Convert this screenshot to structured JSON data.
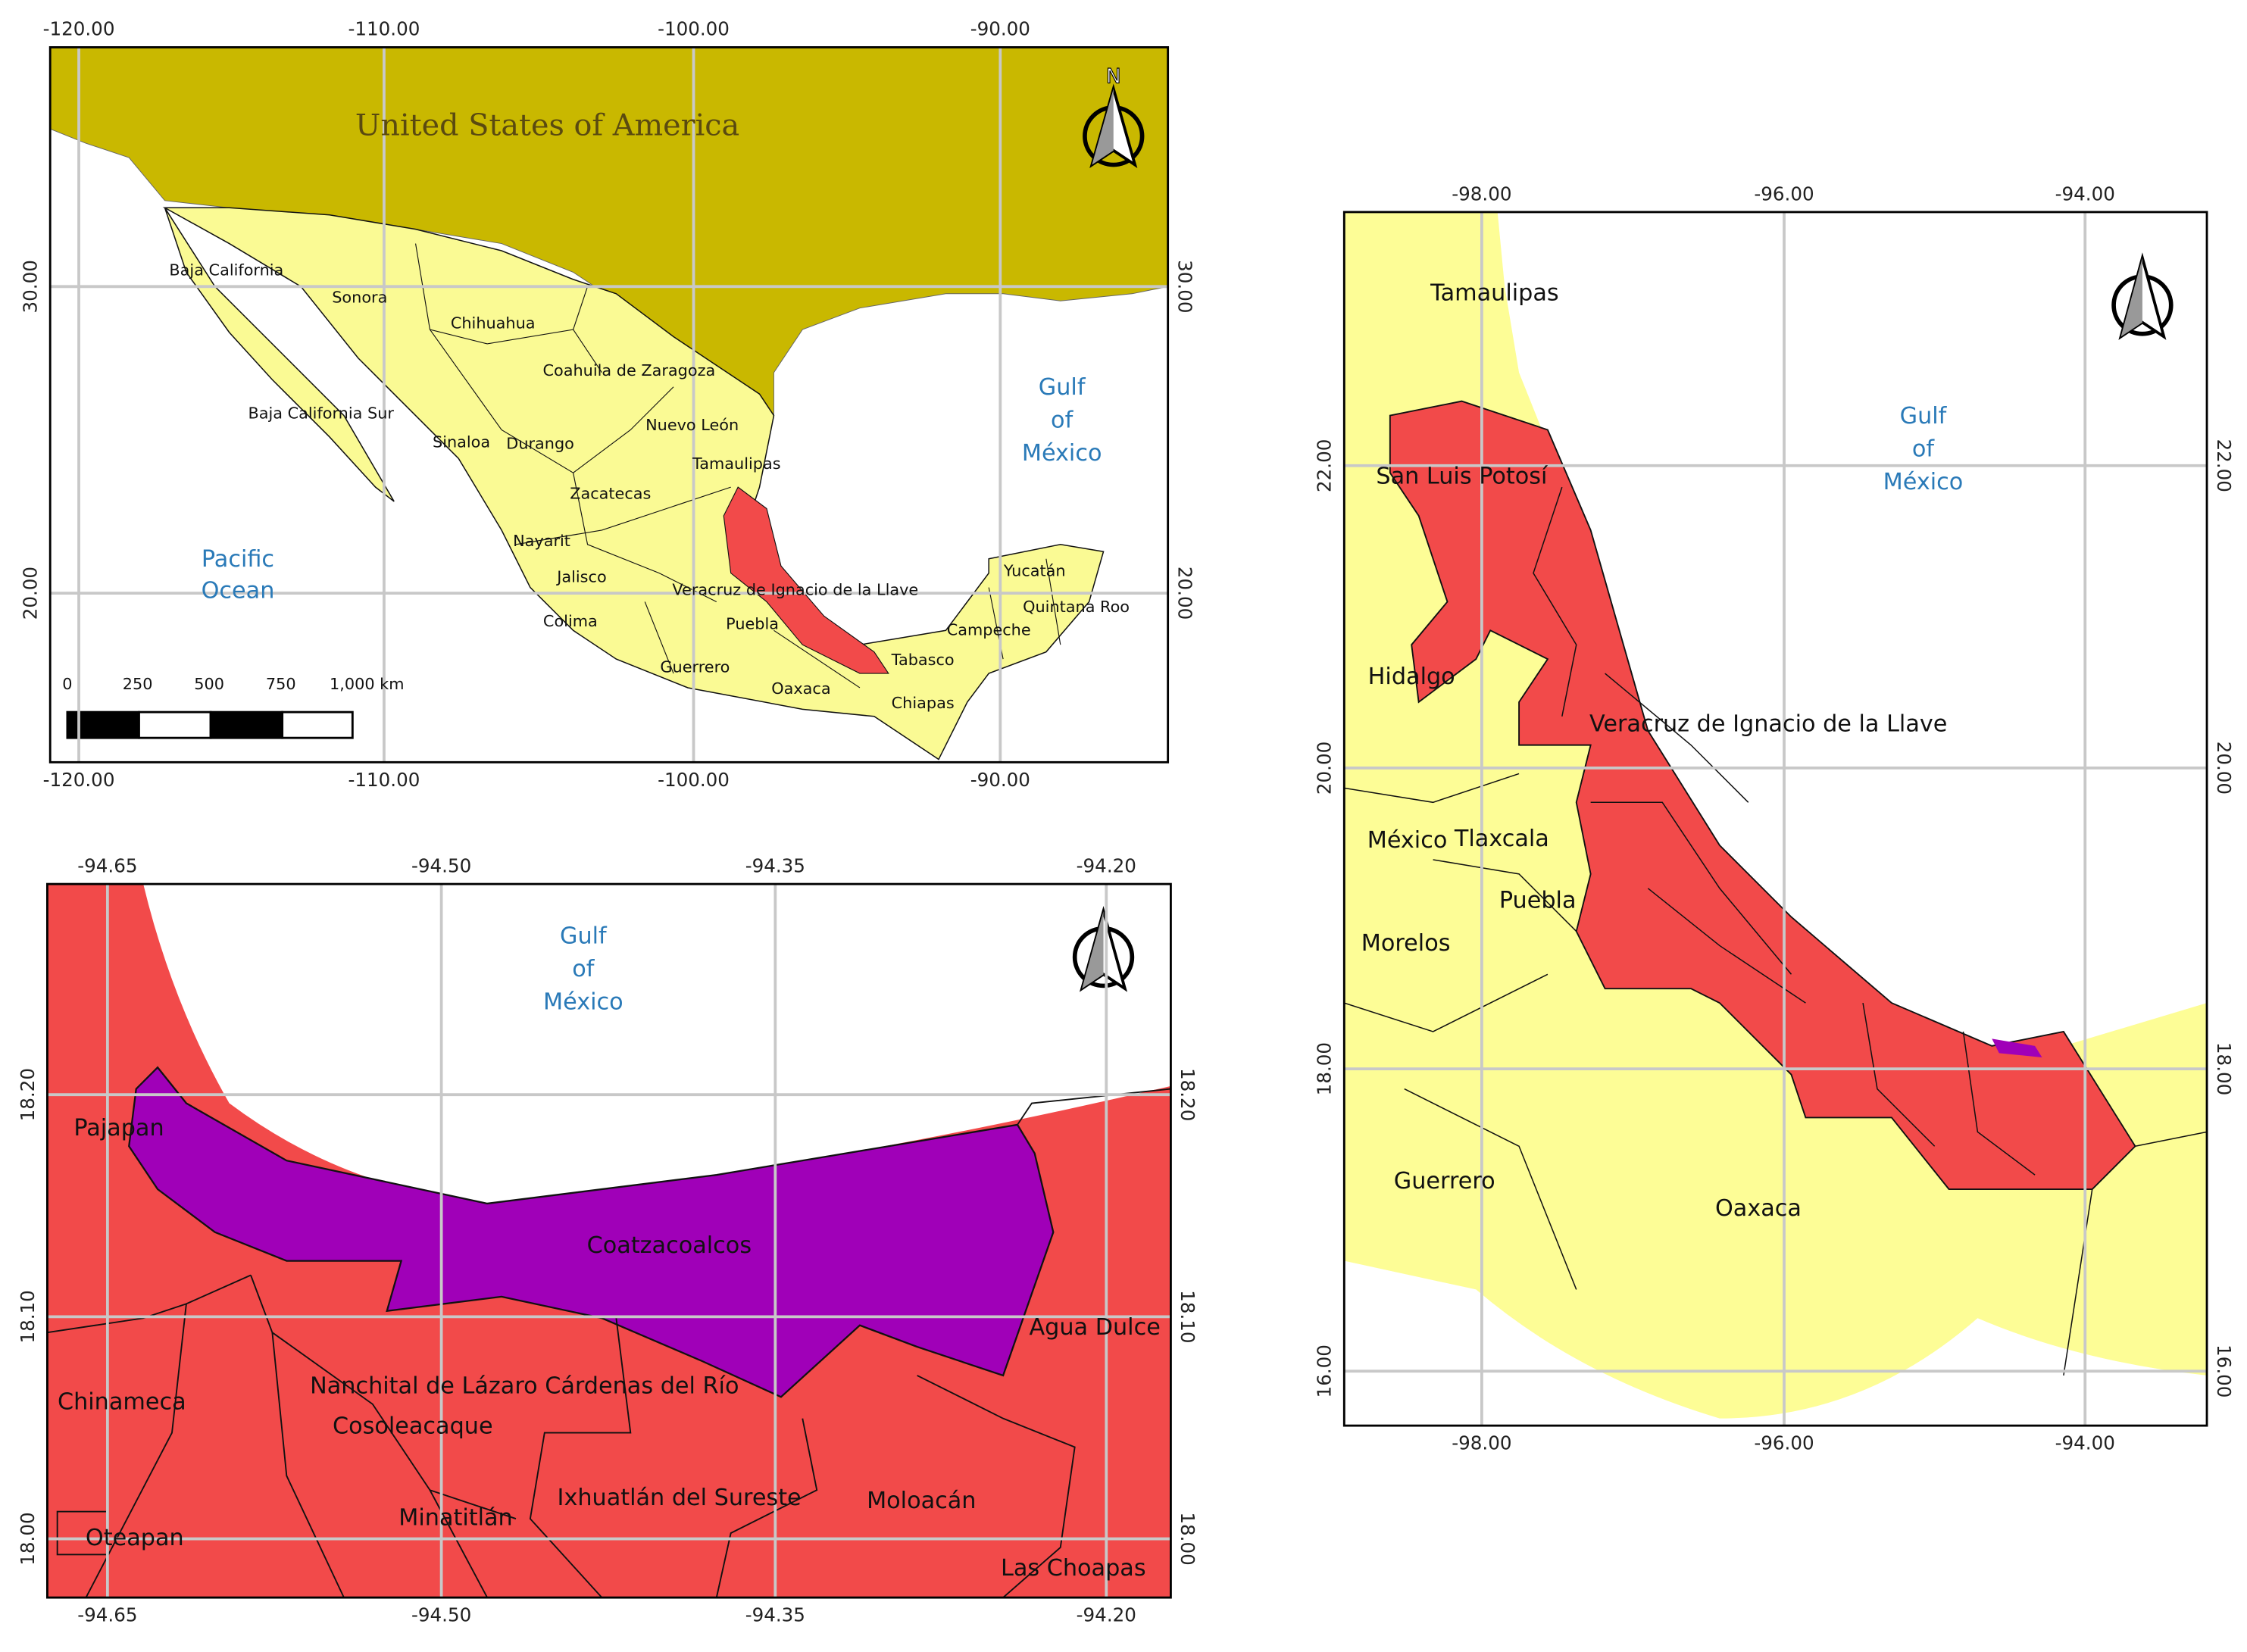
{
  "maps": [
    {
      "x_ticks": [
        "-120.00",
        "-110.00",
        "-100.00",
        "-90.00"
      ],
      "y_ticks": [
        "30.00",
        "20.00"
      ],
      "north": "N",
      "country": "United States of America",
      "seas": [
        [
          "Gulf",
          "of",
          "México"
        ],
        [
          "Pacific",
          "Ocean"
        ]
      ],
      "places": [
        "Baja California",
        "Sonora",
        "Chihuahua",
        "Coahuila de Zaragoza",
        "Baja California Sur",
        "Sinaloa",
        "Durango",
        "Nuevo León",
        "Tamaulipas",
        "Zacatecas",
        "Nayarit",
        "Jalisco",
        "Veracruz de Ignacio de la Llave",
        "Colima",
        "Puebla",
        "Yucatán",
        "Quintana Roo",
        "Campeche",
        "Tabasco",
        "Guerrero",
        "Oaxaca",
        "Chiapas"
      ],
      "scale": [
        "0",
        "250",
        "500",
        "750",
        "1,000 km"
      ]
    },
    {
      "x_ticks": [
        "-94.65",
        "-94.50",
        "-94.35",
        "-94.20"
      ],
      "y_ticks": [
        "18.20",
        "18.10",
        "18.00"
      ],
      "seas": [
        [
          "Gulf",
          "of",
          "México"
        ]
      ],
      "places": [
        "Pajapan",
        "Coatzacoalcos",
        "Agua Dulce",
        "Nanchital de Lázaro Cárdenas del Río",
        "Chinameca",
        "Cosoleacaque",
        "Minatitlán",
        "Ixhuatlán del Sureste",
        "Moloacán",
        "Oteapan",
        "Las Choapas"
      ]
    },
    {
      "x_ticks": [
        "-98.00",
        "-96.00",
        "-94.00"
      ],
      "y_ticks": [
        "22.00",
        "20.00",
        "18.00",
        "16.00"
      ],
      "seas": [
        [
          "Gulf",
          "of",
          "México"
        ]
      ],
      "places": [
        "Tamaulipas",
        "San Luis Potosí",
        "Hidalgo",
        "Veracruz de Ignacio de la Llave",
        "México",
        "Tlaxcala",
        "Puebla",
        "Morelos",
        "Guerrero",
        "Oaxaca"
      ]
    }
  ]
}
